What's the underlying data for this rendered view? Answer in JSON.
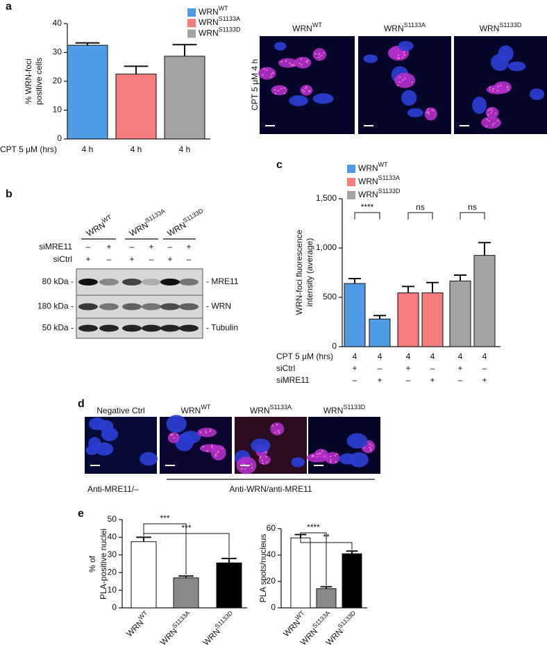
{
  "panel_labels": [
    "a",
    "b",
    "c",
    "d",
    "e"
  ],
  "chart_data": [
    {
      "type": "bar",
      "x_label": "CPT 5 μM (hrs)",
      "y_label": [
        "% WRN-foci",
        "positive cells"
      ],
      "categories": [
        "4 h",
        "4 h",
        "4 h"
      ],
      "series": [
        {
          "name": "WRNWT",
          "color": "#4f9be6",
          "values": [
            32.5,
            null,
            null
          ],
          "errors": [
            0.8,
            null,
            null
          ]
        },
        {
          "name": "WRNS1133A",
          "color": "#f47c7c",
          "values": [
            null,
            22.5,
            null
          ],
          "errors": [
            null,
            2.7,
            null
          ]
        },
        {
          "name": "WRNS1133D",
          "color": "#a3a3a3",
          "values": [
            null,
            null,
            28.7
          ],
          "errors": [
            null,
            null,
            4.0
          ]
        }
      ],
      "ylim": [
        0,
        40
      ],
      "yticks": [
        0,
        10,
        20,
        30,
        40
      ]
    },
    {
      "type": "bar",
      "x_label": "CPT 5 μM (hrs)",
      "y_label": [
        "WRN-foci fluorescence",
        "intensity (average)"
      ],
      "categories": [
        "4",
        "4",
        "4",
        "4",
        "4",
        "4"
      ],
      "rows": [
        {
          "label": "siCtrl",
          "values": [
            "+",
            "–",
            "+",
            "–",
            "+",
            "–"
          ]
        },
        {
          "label": "siMRE11",
          "values": [
            "–",
            "+",
            "–",
            "+",
            "–",
            "+"
          ]
        }
      ],
      "series": [
        {
          "name": "WRNWT",
          "color": "#4f9be6",
          "values": [
            640,
            280,
            null,
            null,
            null,
            null
          ],
          "errors": [
            50,
            35,
            null,
            null,
            null,
            null
          ]
        },
        {
          "name": "WRNS1133A",
          "color": "#f47c7c",
          "values": [
            null,
            null,
            545,
            545,
            null,
            null
          ],
          "errors": [
            null,
            null,
            65,
            105,
            null,
            null
          ]
        },
        {
          "name": "WRNS1133D",
          "color": "#a3a3a3",
          "values": [
            null,
            null,
            null,
            null,
            665,
            925
          ],
          "errors": [
            null,
            null,
            null,
            null,
            60,
            130
          ]
        }
      ],
      "significance": [
        "****",
        "ns",
        "ns"
      ],
      "ylim": [
        0,
        1500
      ],
      "yticks": [
        0,
        500,
        {
          "value": 1000,
          "label": "1,000"
        },
        {
          "value": 1500,
          "label": "1,500"
        }
      ]
    },
    {
      "type": "bar",
      "y_label": [
        "% of",
        "PLA-positive nuclei"
      ],
      "categories": [
        "WRNWT",
        "WRNS1133A",
        "WRNS1133D"
      ],
      "values": [
        37.5,
        17,
        25.5
      ],
      "errors": [
        2.5,
        1,
        2.5
      ],
      "colors": [
        "#ffffff",
        "#8a8a8a",
        "#000000"
      ],
      "significance": [
        "***",
        "***"
      ],
      "ylim": [
        0,
        50
      ],
      "yticks": [
        0,
        10,
        20,
        30,
        40,
        50
      ]
    },
    {
      "type": "bar",
      "y_label": [
        "PLA spots/nucleus"
      ],
      "categories": [
        "WRNWT",
        "WRNS1133A",
        "WRNS1133D"
      ],
      "values": [
        53,
        14.5,
        41
      ],
      "errors": [
        2.5,
        1.5,
        2
      ],
      "colors": [
        "#ffffff",
        "#8a8a8a",
        "#000000"
      ],
      "significance": [
        "****",
        "**"
      ],
      "ylim": [
        0,
        60
      ],
      "yticks": [
        0,
        20,
        40,
        60
      ]
    }
  ],
  "panel_a_images": {
    "title": "CPT 5 μM 4 h",
    "columns": [
      "WRNWT",
      "WRNS1133A",
      "WRNS1133D"
    ]
  },
  "panel_b": {
    "columns": [
      "WRNWT",
      "WRNS1133A",
      "WRNS1133D"
    ],
    "rows": [
      {
        "label": "siMRE11",
        "values": [
          "–",
          "+",
          "–",
          "+",
          "–",
          "+"
        ]
      },
      {
        "label": "siCtrl",
        "values": [
          "+",
          "–",
          "+",
          "–",
          "+",
          "–"
        ]
      }
    ],
    "markers": [
      "80 kDa -",
      "180 kDa -",
      "50 kDa -"
    ],
    "proteins": [
      "- MRE11",
      "- WRN",
      "- Tubulin"
    ]
  },
  "panel_d": {
    "columns": [
      "Negative Ctrl",
      "WRNWT",
      "WRNS1133A",
      "WRNS1133D"
    ],
    "groups": [
      "Anti-MRE11/–",
      "Anti-WRN/anti-MRE11"
    ]
  }
}
